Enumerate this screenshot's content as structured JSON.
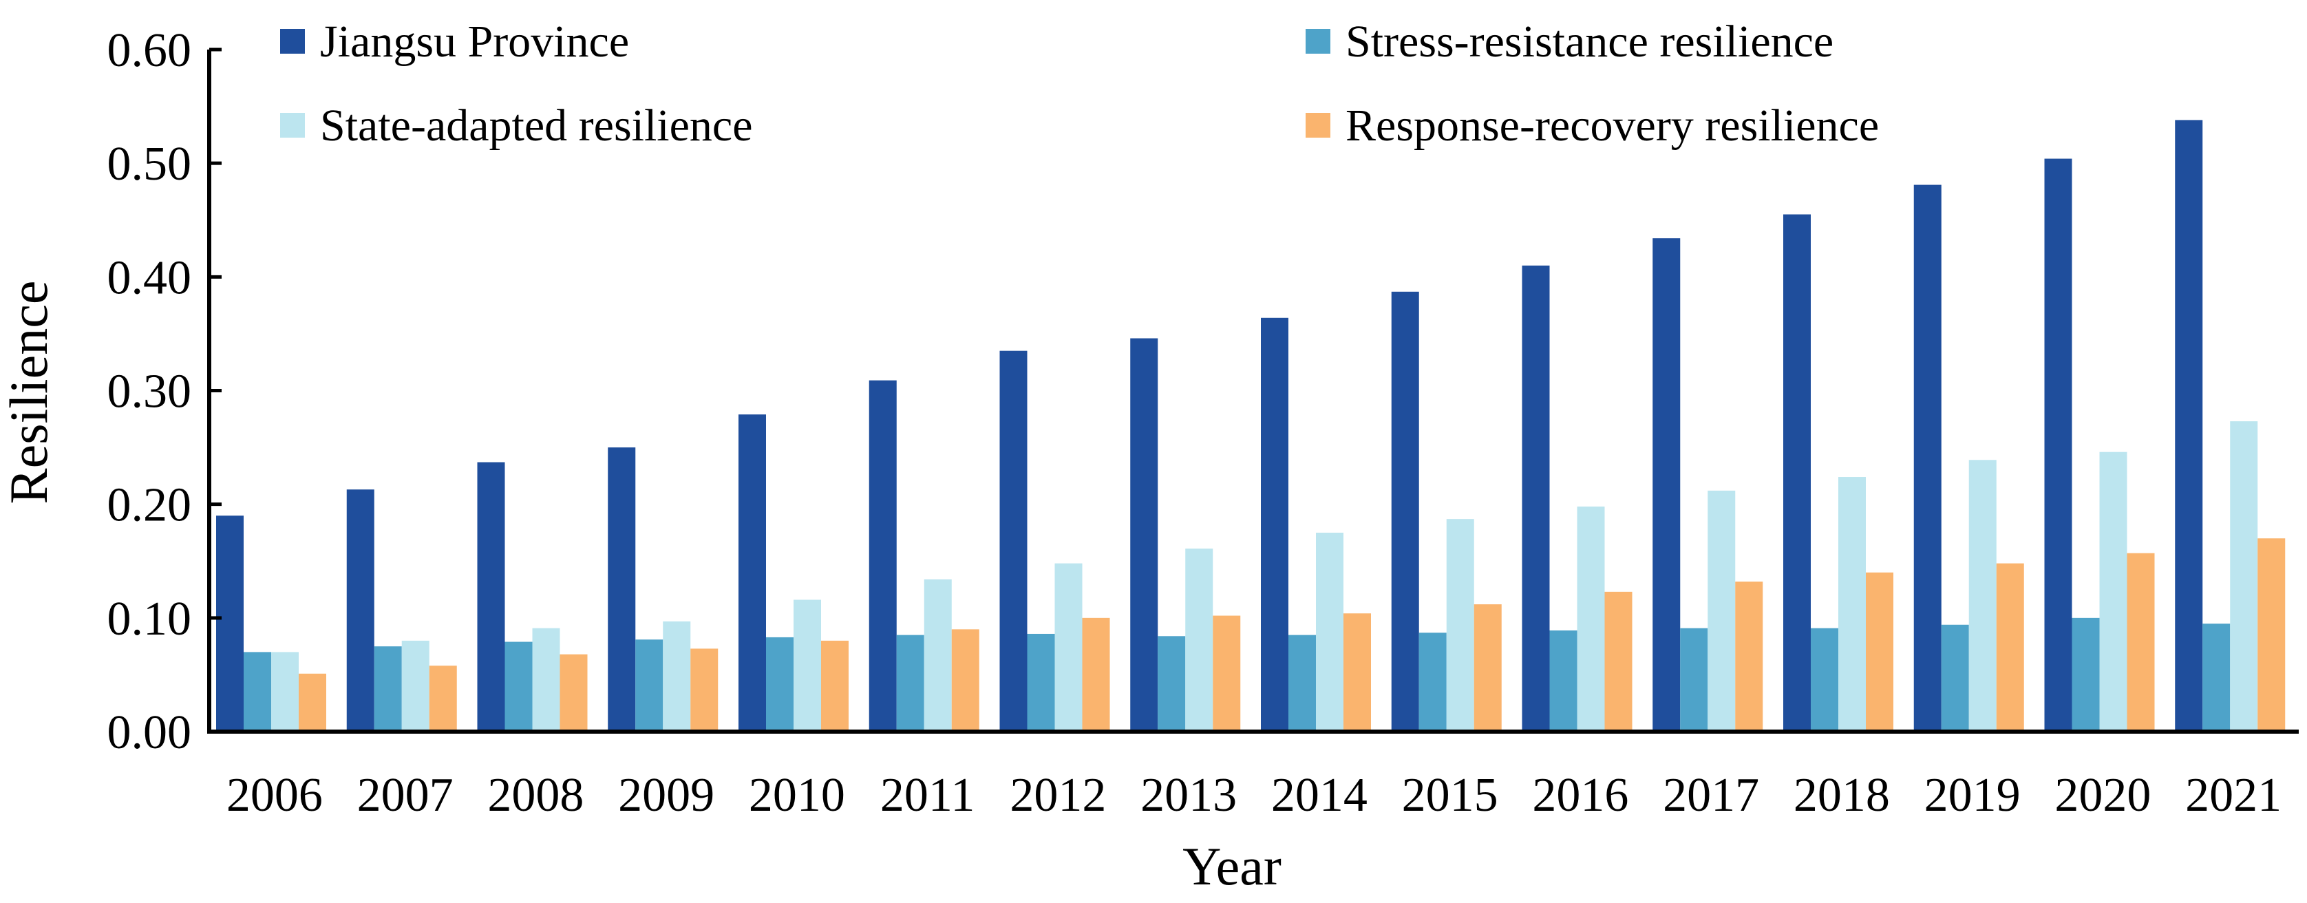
{
  "chart_data": {
    "type": "bar",
    "title": "",
    "xlabel": "Year",
    "ylabel": "Resilience",
    "ylim": [
      0,
      0.6
    ],
    "yticks": [
      "0.00",
      "0.10",
      "0.20",
      "0.30",
      "0.40",
      "0.50",
      "0.60"
    ],
    "legend_position": "top",
    "categories": [
      "2006",
      "2007",
      "2008",
      "2009",
      "2010",
      "2011",
      "2012",
      "2013",
      "2014",
      "2015",
      "2016",
      "2017",
      "2018",
      "2019",
      "2020",
      "2021"
    ],
    "series": [
      {
        "name": "Jiangsu Province",
        "color": "#1f4e9c",
        "values": [
          0.19,
          0.213,
          0.237,
          0.25,
          0.279,
          0.309,
          0.335,
          0.346,
          0.364,
          0.387,
          0.41,
          0.434,
          0.455,
          0.481,
          0.504,
          0.538
        ]
      },
      {
        "name": "Stress-resistance resilience",
        "color": "#4ea3c9",
        "values": [
          0.07,
          0.075,
          0.079,
          0.081,
          0.083,
          0.085,
          0.086,
          0.084,
          0.085,
          0.087,
          0.089,
          0.091,
          0.091,
          0.094,
          0.1,
          0.095
        ]
      },
      {
        "name": "State-adapted resilience",
        "color": "#bce5ef",
        "values": [
          0.07,
          0.08,
          0.091,
          0.097,
          0.116,
          0.134,
          0.148,
          0.161,
          0.175,
          0.187,
          0.198,
          0.212,
          0.224,
          0.239,
          0.246,
          0.273
        ]
      },
      {
        "name": "Response-recovery resilience",
        "color": "#fab46e",
        "values": [
          0.051,
          0.058,
          0.068,
          0.073,
          0.08,
          0.09,
          0.1,
          0.102,
          0.104,
          0.112,
          0.123,
          0.132,
          0.14,
          0.148,
          0.157,
          0.17
        ]
      }
    ]
  }
}
